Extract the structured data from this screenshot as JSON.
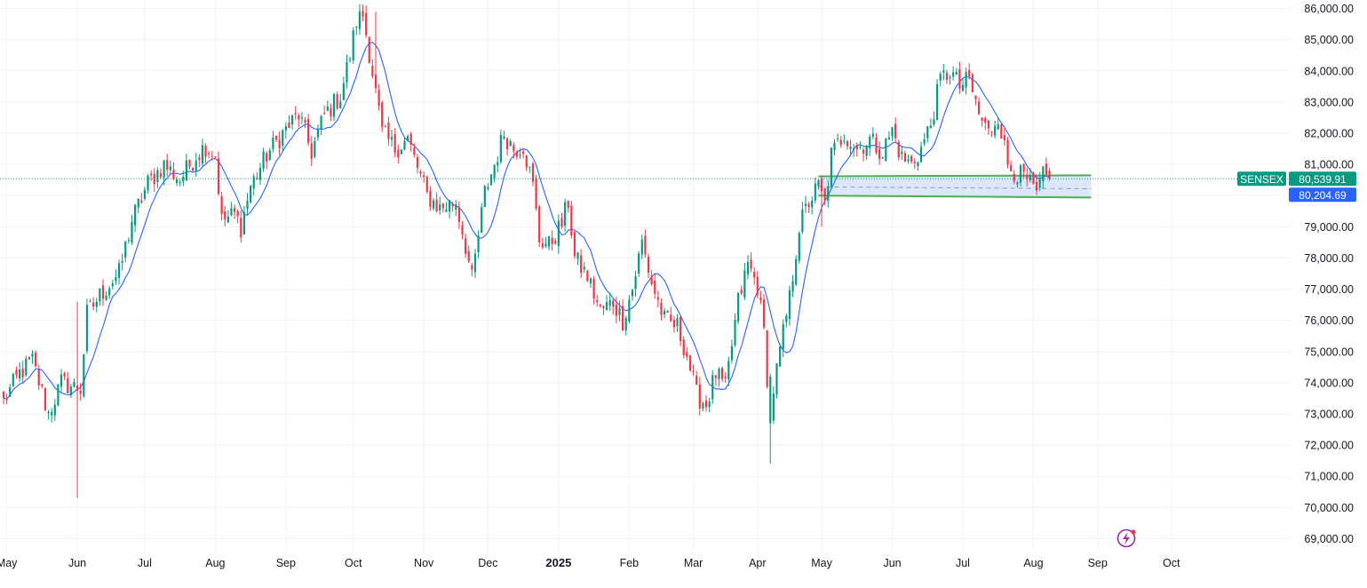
{
  "chart_data": {
    "type": "candlestick",
    "symbol": "SENSEX",
    "y_range": [
      68500,
      86300
    ],
    "y_ticks": [
      {
        "value": 69000,
        "label": "69,000.00"
      },
      {
        "value": 70000,
        "label": "70,000.00"
      },
      {
        "value": 71000,
        "label": "71,000.00"
      },
      {
        "value": 72000,
        "label": "72,000.00"
      },
      {
        "value": 73000,
        "label": "73,000.00"
      },
      {
        "value": 74000,
        "label": "74,000.00"
      },
      {
        "value": 75000,
        "label": "75,000.00"
      },
      {
        "value": 76000,
        "label": "76,000.00"
      },
      {
        "value": 77000,
        "label": "77,000.00"
      },
      {
        "value": 78000,
        "label": "78,000.00"
      },
      {
        "value": 79000,
        "label": "79,000.00"
      },
      {
        "value": 80000,
        "label": "80,000.00"
      },
      {
        "value": 81000,
        "label": "81,000.00"
      },
      {
        "value": 82000,
        "label": "82,000.00"
      },
      {
        "value": 83000,
        "label": "83,000.00"
      },
      {
        "value": 84000,
        "label": "84,000.00"
      },
      {
        "value": 85000,
        "label": "85,000.00"
      },
      {
        "value": 86000,
        "label": "86,000.00"
      }
    ],
    "x_months": [
      {
        "label": "May",
        "index": 1,
        "bold": false
      },
      {
        "label": "Jun",
        "index": 23,
        "bold": false
      },
      {
        "label": "Jul",
        "index": 44,
        "bold": false
      },
      {
        "label": "Aug",
        "index": 66,
        "bold": false
      },
      {
        "label": "Sep",
        "index": 88,
        "bold": false
      },
      {
        "label": "Oct",
        "index": 109,
        "bold": false
      },
      {
        "label": "Nov",
        "index": 131,
        "bold": false
      },
      {
        "label": "Dec",
        "index": 151,
        "bold": false
      },
      {
        "label": "2025",
        "index": 173,
        "bold": true
      },
      {
        "label": "Feb",
        "index": 195,
        "bold": false
      },
      {
        "label": "Mar",
        "index": 215,
        "bold": false
      },
      {
        "label": "Apr",
        "index": 235,
        "bold": false
      },
      {
        "label": "May",
        "index": 255,
        "bold": false
      },
      {
        "label": "Jun",
        "index": 277,
        "bold": false
      },
      {
        "label": "Jul",
        "index": 299,
        "bold": false
      },
      {
        "label": "Aug",
        "index": 321,
        "bold": false
      },
      {
        "label": "Sep",
        "index": 341,
        "bold": false
      },
      {
        "label": "Oct",
        "index": 364,
        "bold": false
      }
    ],
    "bar_count": 384,
    "price_path": [
      [
        0,
        73400
      ],
      [
        5,
        74300
      ],
      [
        9,
        74700
      ],
      [
        14,
        73000
      ],
      [
        18,
        74000
      ],
      [
        24,
        73800
      ],
      [
        26,
        76200
      ],
      [
        30,
        76800
      ],
      [
        36,
        77500
      ],
      [
        40,
        79200
      ],
      [
        45,
        80400
      ],
      [
        50,
        81000
      ],
      [
        55,
        80500
      ],
      [
        60,
        81300
      ],
      [
        63,
        81600
      ],
      [
        66,
        81300
      ],
      [
        68,
        79200
      ],
      [
        72,
        79400
      ],
      [
        74,
        79000
      ],
      [
        77,
        80300
      ],
      [
        82,
        81300
      ],
      [
        87,
        82000
      ],
      [
        92,
        82600
      ],
      [
        96,
        81400
      ],
      [
        100,
        82600
      ],
      [
        105,
        83200
      ],
      [
        108,
        84500
      ],
      [
        110,
        85600
      ],
      [
        112,
        85800
      ],
      [
        114,
        84600
      ],
      [
        118,
        82000
      ],
      [
        122,
        81500
      ],
      [
        126,
        81800
      ],
      [
        132,
        80000
      ],
      [
        136,
        79600
      ],
      [
        141,
        79800
      ],
      [
        144,
        78400
      ],
      [
        146,
        77300
      ],
      [
        150,
        80100
      ],
      [
        153,
        81000
      ],
      [
        156,
        82000
      ],
      [
        159,
        81500
      ],
      [
        162,
        81600
      ],
      [
        165,
        80300
      ],
      [
        167,
        78600
      ],
      [
        170,
        78400
      ],
      [
        174,
        79100
      ],
      [
        176,
        79800
      ],
      [
        178,
        78000
      ],
      [
        182,
        77400
      ],
      [
        186,
        76300
      ],
      [
        190,
        76600
      ],
      [
        193,
        76000
      ],
      [
        196,
        77000
      ],
      [
        199,
        78500
      ],
      [
        202,
        77200
      ],
      [
        206,
        76000
      ],
      [
        210,
        75800
      ],
      [
        213,
        74900
      ],
      [
        216,
        73600
      ],
      [
        219,
        73300
      ],
      [
        222,
        74300
      ],
      [
        225,
        73800
      ],
      [
        229,
        76600
      ],
      [
        232,
        77800
      ],
      [
        235,
        77100
      ],
      [
        237,
        75600
      ],
      [
        239,
        72800
      ],
      [
        240,
        73800
      ],
      [
        242,
        75000
      ],
      [
        245,
        76700
      ],
      [
        248,
        79000
      ],
      [
        251,
        79800
      ],
      [
        254,
        80300
      ],
      [
        256,
        79700
      ],
      [
        258,
        81300
      ],
      [
        262,
        82000
      ],
      [
        266,
        81500
      ],
      [
        270,
        81800
      ],
      [
        274,
        81400
      ],
      [
        277,
        82100
      ],
      [
        280,
        81200
      ],
      [
        283,
        81000
      ],
      [
        286,
        81500
      ],
      [
        289,
        82300
      ],
      [
        292,
        83700
      ],
      [
        295,
        84000
      ],
      [
        298,
        83500
      ],
      [
        301,
        83700
      ],
      [
        304,
        82600
      ],
      [
        307,
        82000
      ],
      [
        310,
        82600
      ],
      [
        313,
        81000
      ],
      [
        316,
        80700
      ],
      [
        319,
        80500
      ],
      [
        322,
        80000
      ],
      [
        324,
        80600
      ],
      [
        326,
        80540
      ]
    ],
    "sma_lag": 9,
    "current_price": 80539.91,
    "current_price_label": "80,539.91",
    "crosshair_price": 80204.69,
    "crosshair_price_label": "80,204.69",
    "current_price_color": "#089981",
    "crosshair_price_color": "#2962ff",
    "up_color": "#089981",
    "down_color": "#f23645",
    "sma_color": "#2962ff",
    "zone": {
      "start_index": 254,
      "end_index": 339,
      "upper_start": 80620,
      "upper_end": 80650,
      "lower_start": 80000,
      "lower_end": 79940,
      "mid_start": 80280,
      "mid_end": 80220,
      "line_color": "#4caf50",
      "fill_color": "#bbd6f5"
    }
  }
}
